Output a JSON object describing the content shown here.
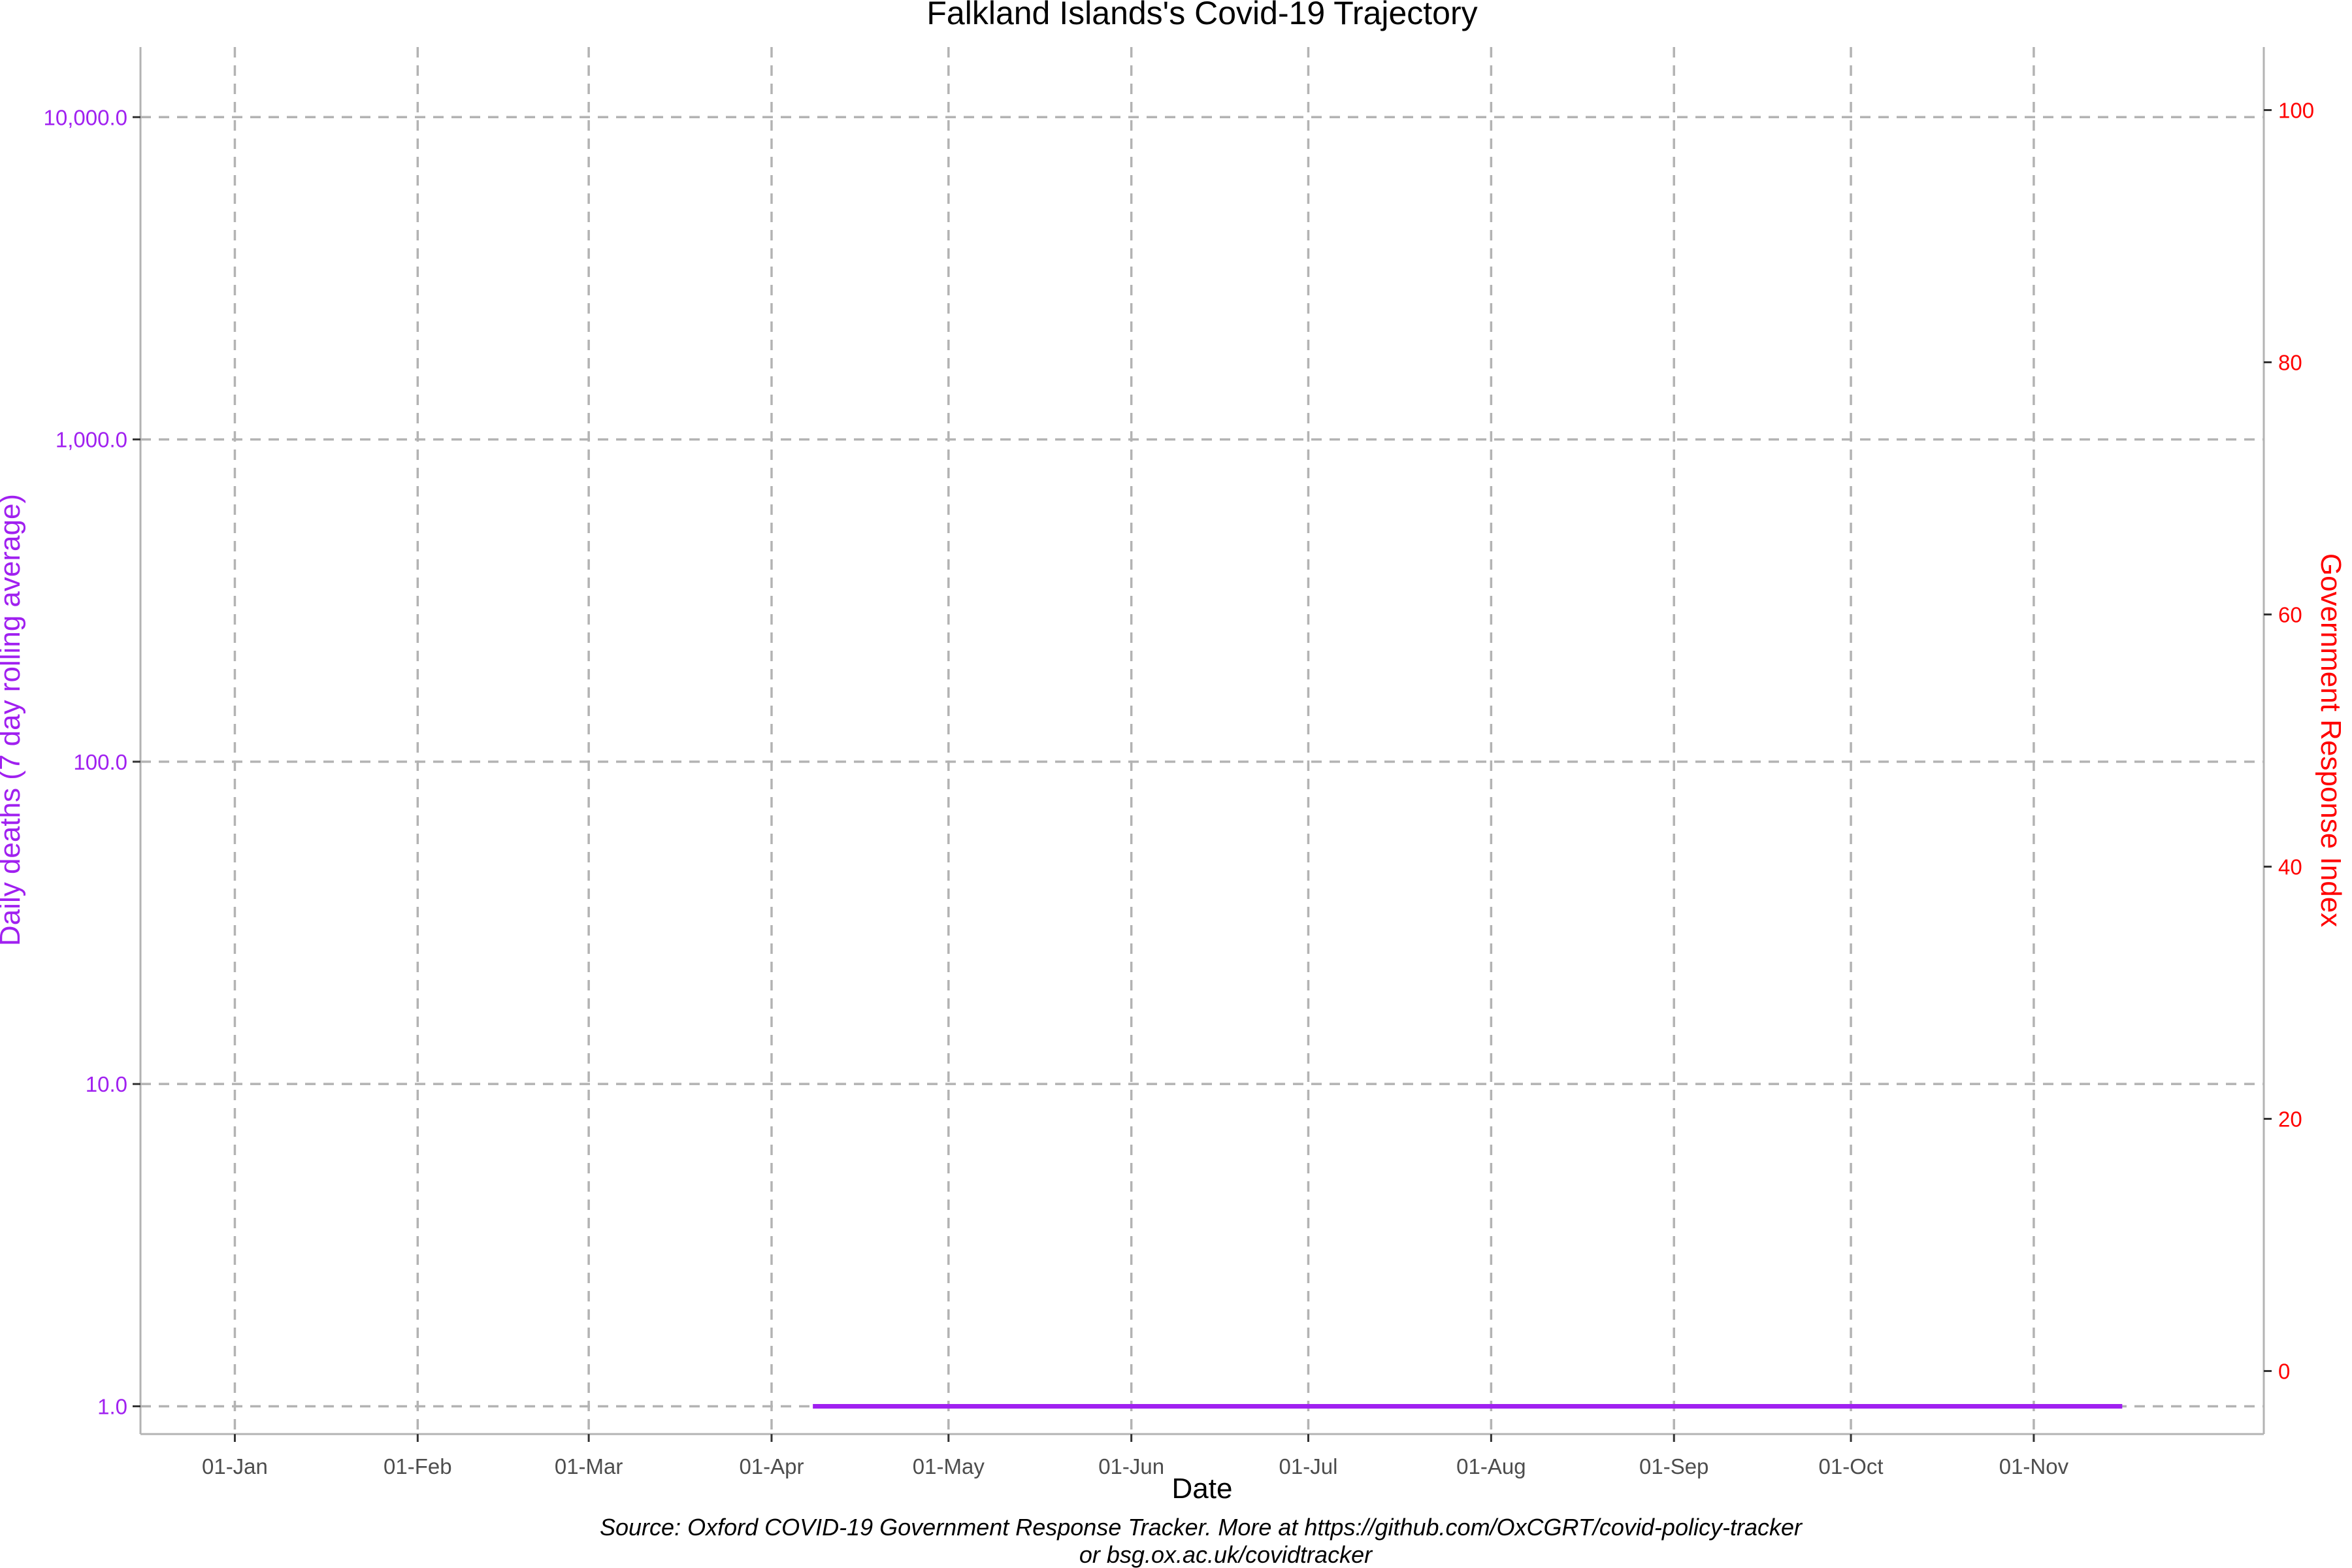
{
  "chart_data": {
    "type": "line",
    "title": "Falkland Islands's Covid-19 Trajectory",
    "xlabel": "Date",
    "ylabel_left": "Daily deaths (7 day rolling average)",
    "ylabel_right": "Government Response Index",
    "x_ticks": [
      "01-Jan",
      "01-Feb",
      "01-Mar",
      "01-Apr",
      "01-May",
      "01-Jun",
      "01-Jul",
      "01-Aug",
      "01-Sep",
      "01-Oct",
      "01-Nov"
    ],
    "x_tick_dates": [
      "2020-01-01",
      "2020-02-01",
      "2020-03-01",
      "2020-04-01",
      "2020-05-01",
      "2020-06-01",
      "2020-07-01",
      "2020-08-01",
      "2020-09-01",
      "2020-10-01",
      "2020-11-01"
    ],
    "xlim": [
      "2019-12-16",
      "2020-12-10"
    ],
    "y_left_scale": "log",
    "y_left_ticks": [
      1,
      10,
      100,
      1000,
      10000
    ],
    "y_left_tick_labels": [
      "1.0",
      "10.0",
      "100.0",
      "1,000.0",
      "10,000.0"
    ],
    "y_left_lim": [
      0.82,
      16500
    ],
    "y_right_ticks": [
      0,
      20,
      40,
      60,
      80,
      100
    ],
    "y_right_tick_labels": [
      "0",
      "20",
      "40",
      "60",
      "80",
      "100"
    ],
    "y_right_lim": [
      -5,
      105
    ],
    "grid": true,
    "grid_style": "dashed",
    "series": [
      {
        "name": "",
        "axis": "left",
        "color": "#a020f0",
        "x": [
          "2020-04-08",
          "2020-11-16"
        ],
        "values": [
          1.0,
          1.0
        ]
      }
    ],
    "colors": {
      "left_axis": "#a020f0",
      "right_axis": "#ff0000"
    }
  },
  "caption": {
    "line1": "Source: Oxford COVID-19 Government Response Tracker. More at https://github.com/OxCGRT/covid-policy-tracker",
    "line2": "or bsg.ox.ac.uk/covidtracker"
  }
}
